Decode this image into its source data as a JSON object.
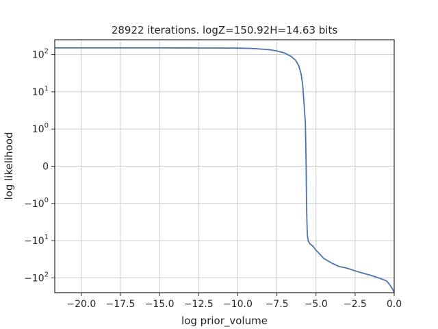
{
  "chart_data": {
    "type": "line",
    "title": "28922 iterations. logZ=150.92H=14.63 bits",
    "xlabel": "log prior_volume",
    "ylabel": "log likelihood",
    "xlim": [
      -21.7,
      0.0
    ],
    "yscale": "symlog",
    "grid": true,
    "line_color": "#4c72b0",
    "x_ticks": [
      {
        "value": -20.0,
        "label": "−20.0"
      },
      {
        "value": -17.5,
        "label": "−17.5"
      },
      {
        "value": -15.0,
        "label": "−15.0"
      },
      {
        "value": -12.5,
        "label": "−12.5"
      },
      {
        "value": -10.0,
        "label": "−10.0"
      },
      {
        "value": -7.5,
        "label": "−7.5"
      },
      {
        "value": -5.0,
        "label": "−5.0"
      },
      {
        "value": -2.5,
        "label": "−2.5"
      },
      {
        "value": 0.0,
        "label": "0.0"
      }
    ],
    "y_ticks": [
      {
        "value": 100,
        "base": "10",
        "exp": "2",
        "sign": ""
      },
      {
        "value": 10,
        "base": "10",
        "exp": "1",
        "sign": ""
      },
      {
        "value": 1,
        "base": "10",
        "exp": "0",
        "sign": ""
      },
      {
        "value": 0,
        "base": "0",
        "exp": "",
        "sign": ""
      },
      {
        "value": -1,
        "base": "10",
        "exp": "0",
        "sign": "−"
      },
      {
        "value": -10,
        "base": "10",
        "exp": "1",
        "sign": "−"
      },
      {
        "value": -100,
        "base": "10",
        "exp": "2",
        "sign": "−"
      }
    ],
    "series": [
      {
        "x": [
          -21.7,
          -15.0,
          -12.0,
          -10.0,
          -9.0,
          -8.0,
          -7.5,
          -7.0,
          -6.6,
          -6.3,
          -6.1,
          -5.95,
          -5.85,
          -5.78,
          -5.72,
          -5.68,
          -5.65,
          -5.62,
          -5.6,
          -5.58,
          -5.55,
          -5.5,
          -5.4,
          -5.2,
          -5.0,
          -4.5,
          -4.0,
          -3.5,
          -3.0,
          -2.5,
          -2.0,
          -1.5,
          -1.0,
          -0.5,
          -0.3,
          -0.1,
          0.0
        ],
        "y": [
          150.9,
          150.9,
          150.5,
          149,
          145,
          135,
          125,
          110,
          90,
          70,
          50,
          30,
          15,
          6,
          2.5,
          1.5,
          0.5,
          -0.3,
          -1.3,
          -3,
          -7,
          -10,
          -12,
          -14,
          -18,
          -30,
          -40,
          -50,
          -55,
          -65,
          -75,
          -85,
          -100,
          -120,
          -150,
          -200,
          -250
        ]
      }
    ]
  }
}
